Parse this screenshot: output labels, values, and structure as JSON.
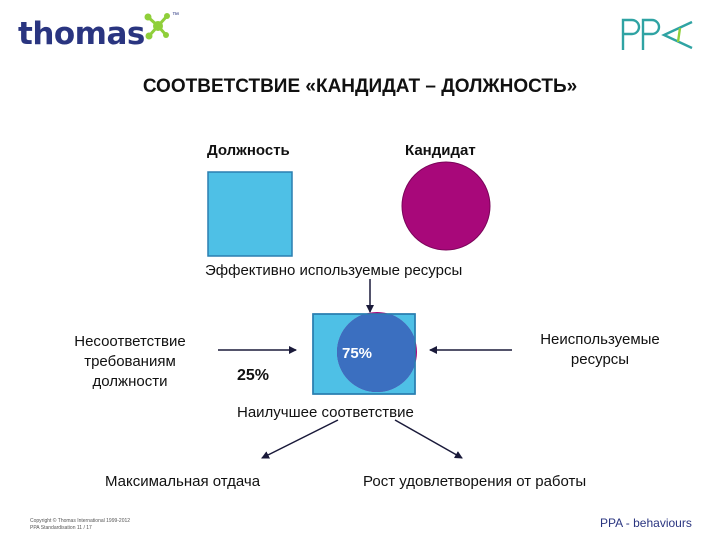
{
  "logo": {
    "text": "thomas",
    "trademark": "™",
    "ppa": "PPA"
  },
  "title": "СООТВЕТСТВИЕ «КАНДИДАТ – ДОЛЖНОСТЬ»",
  "labels": {
    "position": "Должность",
    "candidate": "Кандидат",
    "effective": "Эффективно используемые ресурсы",
    "mismatch_line1": "Несоответствие",
    "mismatch_line2": "требованиям",
    "mismatch_line3": "должности",
    "pct_25": "25%",
    "pct_75": "75%",
    "unused_line1": "Неиспользуемые",
    "unused_line2": "ресурсы",
    "best_fit": "Наилучшее соответствие",
    "max_return": "Максимальная отдача",
    "job_satisfaction": "Рост удовлетворения от работы"
  },
  "footer": {
    "copyright": "Copyright © Thomas International 1999-2012",
    "standard": "PPA Standardisation 11 / 17",
    "right": "PPA - behaviours"
  },
  "colors": {
    "square": "#4ec0e6",
    "circle": "#a8087a",
    "overlap": "#3b6fc0",
    "brand": "#2a3580",
    "accent": "#8fcf3a",
    "ppa": "#2fa3a3"
  }
}
